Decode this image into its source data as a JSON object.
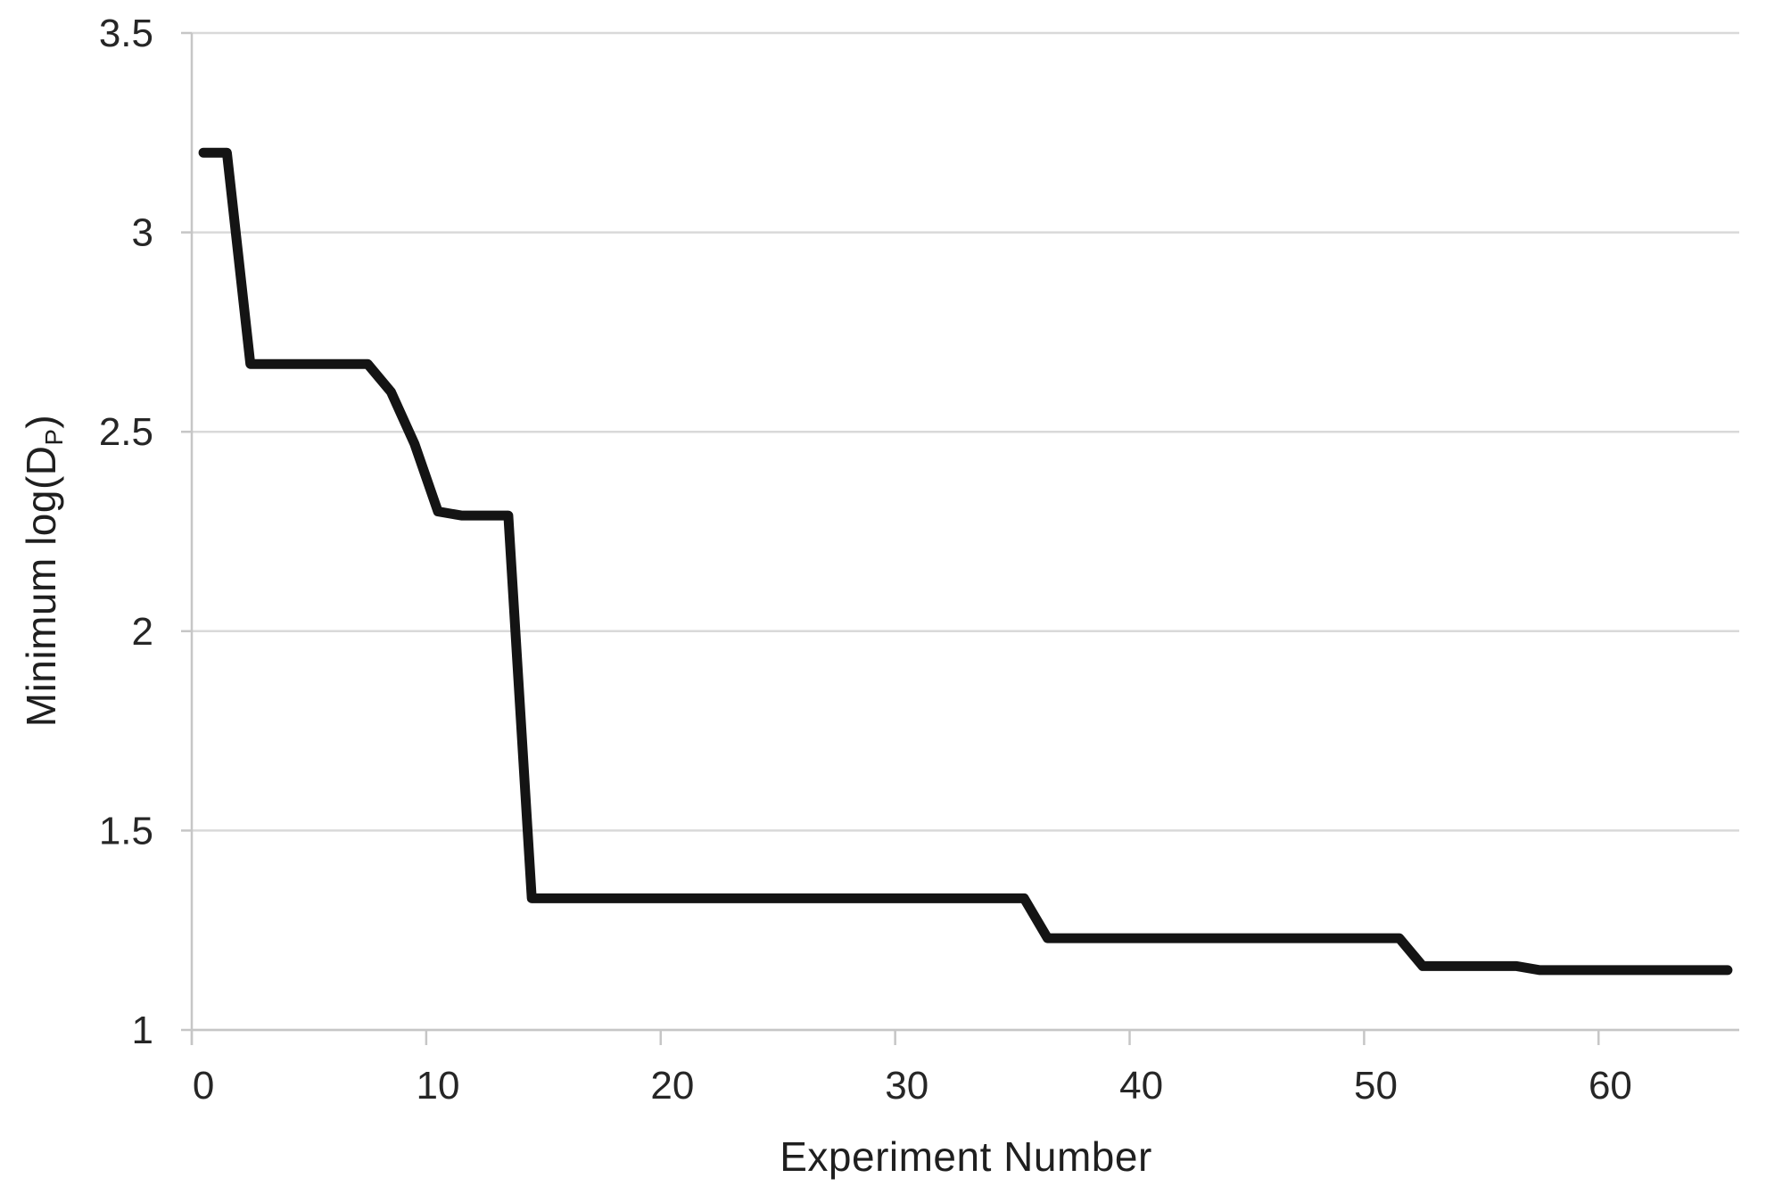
{
  "chart_data": {
    "type": "line",
    "title": "",
    "xlabel": "Experiment Number",
    "ylabel": "Minimum log(D_P)",
    "ylabel_parts": {
      "main": "Minimum log(D",
      "sub": "P",
      "close": ")"
    },
    "x": [
      0,
      1,
      2,
      3,
      4,
      5,
      6,
      7,
      8,
      9,
      10,
      11,
      12,
      13,
      14,
      15,
      16,
      17,
      18,
      19,
      20,
      21,
      22,
      23,
      24,
      25,
      26,
      27,
      28,
      29,
      30,
      31,
      32,
      33,
      34,
      35,
      36,
      37,
      38,
      39,
      40,
      41,
      42,
      43,
      44,
      45,
      46,
      47,
      48,
      49,
      50,
      51,
      52,
      53,
      54,
      55,
      56,
      57,
      58,
      59,
      60,
      61,
      62,
      63,
      64,
      65
    ],
    "values": [
      3.2,
      3.2,
      2.67,
      2.67,
      2.67,
      2.67,
      2.67,
      2.67,
      2.6,
      2.47,
      2.3,
      2.29,
      2.29,
      2.29,
      1.33,
      1.33,
      1.33,
      1.33,
      1.33,
      1.33,
      1.33,
      1.33,
      1.33,
      1.33,
      1.33,
      1.33,
      1.33,
      1.33,
      1.33,
      1.33,
      1.33,
      1.33,
      1.33,
      1.33,
      1.33,
      1.33,
      1.23,
      1.23,
      1.23,
      1.23,
      1.23,
      1.23,
      1.23,
      1.23,
      1.23,
      1.23,
      1.23,
      1.23,
      1.23,
      1.23,
      1.23,
      1.23,
      1.16,
      1.16,
      1.16,
      1.16,
      1.16,
      1.15,
      1.15,
      1.15,
      1.15,
      1.15,
      1.15,
      1.15,
      1.15,
      1.15
    ],
    "x_ticks": [
      0,
      10,
      20,
      30,
      40,
      50,
      60
    ],
    "x_tick_labels": [
      "0",
      "10",
      "20",
      "30",
      "40",
      "50",
      "60"
    ],
    "y_ticks": [
      1,
      1.5,
      2,
      2.5,
      3,
      3.5
    ],
    "y_tick_labels": [
      "1",
      "1.5",
      "2",
      "2.5",
      "3",
      "3.5"
    ],
    "ylim": [
      1,
      3.5
    ],
    "xlim": [
      0,
      66
    ],
    "axis_mode": "between-ticks",
    "grid": "horizontal",
    "legend": "none",
    "line_color": "#141414",
    "grid_color": "#d9d9d9",
    "axis_color": "#c6c6c6",
    "label_color": "#262626"
  }
}
